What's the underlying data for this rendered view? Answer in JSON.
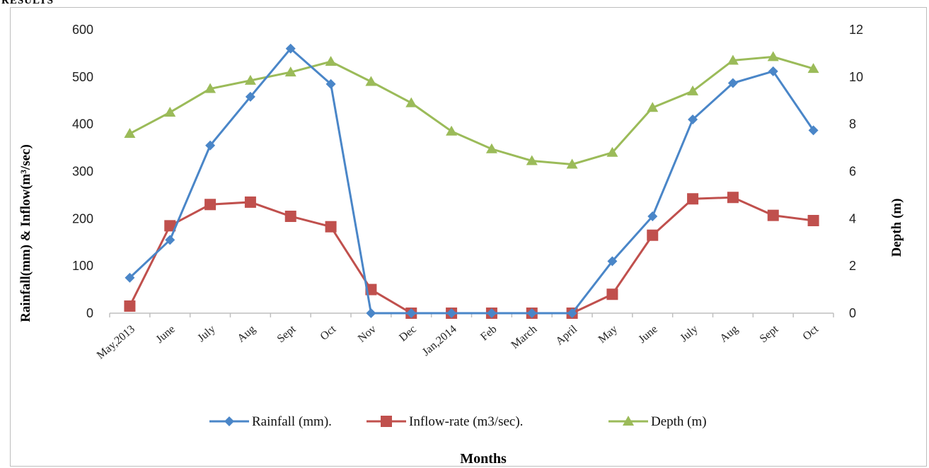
{
  "header": {
    "text": "RESULTS"
  },
  "chart_data": {
    "type": "line",
    "xlabel": "Months",
    "ylabel_left": "Rainfall(mm) & Inflow(m³/sec)",
    "ylabel_right": "Depth (m)",
    "ylim_left": [
      0,
      600
    ],
    "yticks_left": [
      0,
      100,
      200,
      300,
      400,
      500,
      600
    ],
    "ylim_right": [
      0,
      12
    ],
    "yticks_right": [
      0,
      2,
      4,
      6,
      8,
      10,
      12
    ],
    "grid": false,
    "legend": "bottom",
    "categories": [
      "May,2013",
      "June",
      "July",
      "Aug",
      "Sept",
      "Oct",
      "Nov",
      "Dec",
      "Jan,2014",
      "Feb",
      "March",
      "April",
      "May",
      "June",
      "July",
      "Aug",
      "Sept",
      "Oct"
    ],
    "series": [
      {
        "name": "Rainfall (mm).",
        "axis": "left",
        "marker": "diamond",
        "color": "#4a86c8",
        "values": [
          75,
          155,
          355,
          458,
          560,
          485,
          0,
          0,
          0,
          0,
          0,
          0,
          110,
          205,
          410,
          487,
          512,
          387
        ]
      },
      {
        "name": "Inflow-rate (m3/sec).",
        "axis": "left",
        "marker": "square",
        "color": "#c0504d",
        "values": [
          15,
          185,
          230,
          235,
          205,
          183,
          50,
          0,
          0,
          0,
          0,
          0,
          40,
          165,
          242,
          245,
          207,
          196
        ]
      },
      {
        "name": "Depth (m)",
        "axis": "right",
        "marker": "triangle",
        "color": "#9bbb59",
        "values": [
          7.6,
          8.5,
          9.5,
          9.85,
          10.2,
          10.65,
          9.8,
          8.9,
          7.7,
          6.95,
          6.45,
          6.3,
          6.8,
          8.7,
          9.4,
          10.7,
          10.85,
          10.35
        ]
      }
    ]
  }
}
